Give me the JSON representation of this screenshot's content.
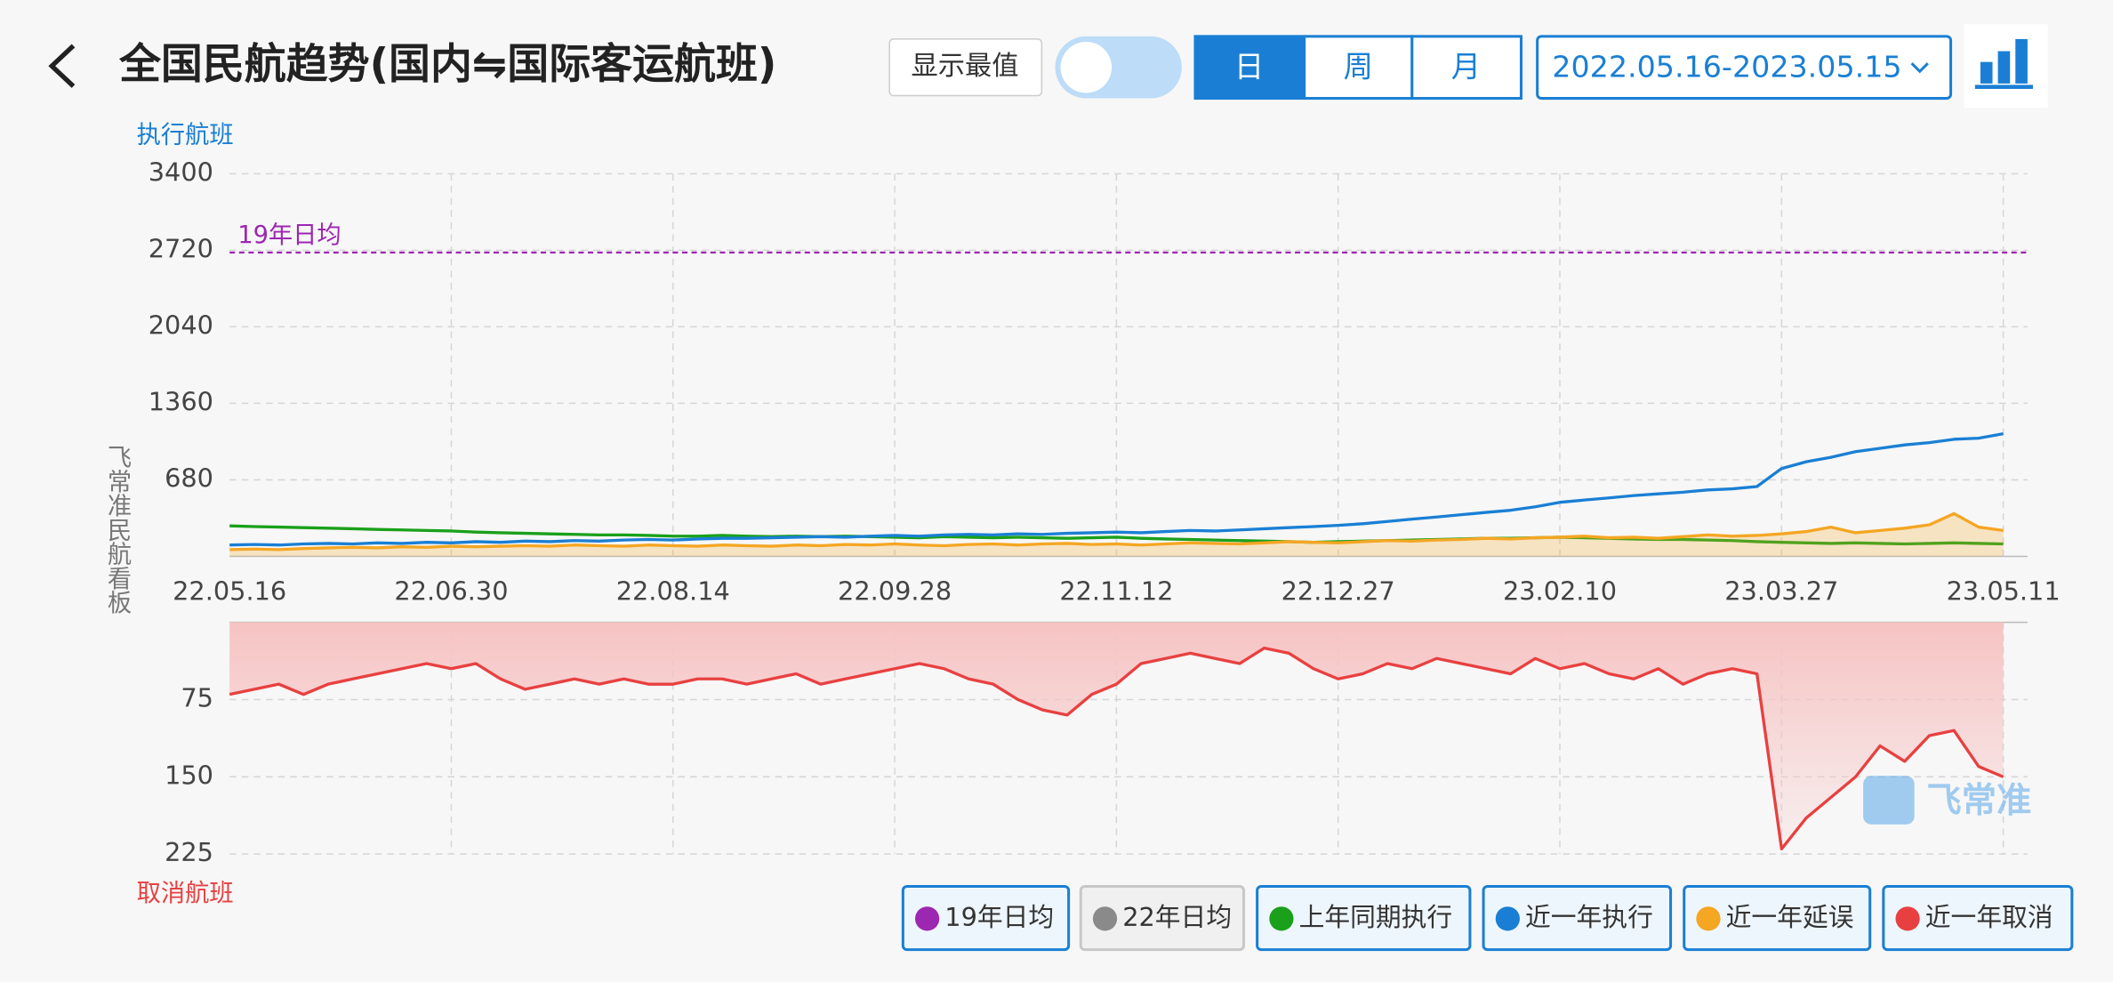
{
  "header": {
    "title": "全国民航趋势(国内⇋国际客运航班)",
    "show_extremes": "显示最值",
    "period_tabs": [
      "日",
      "周",
      "月"
    ],
    "active_tab_index": 0,
    "date_range": "2022.05.16-2023.05.15",
    "watermark": "飞常准"
  },
  "legend_extra": {
    "label": "22年日均",
    "color": "#8a8a8a",
    "active": false
  },
  "chart_data": [
    {
      "type": "line",
      "y_label": "执行航班",
      "side_label": "飞常准民航看板",
      "grid": true,
      "categories": [
        "22.05.16",
        null,
        null,
        null,
        null,
        null,
        null,
        null,
        null,
        "22.06.30",
        null,
        null,
        null,
        null,
        null,
        null,
        null,
        null,
        "22.08.14",
        null,
        null,
        null,
        null,
        null,
        null,
        null,
        null,
        "22.09.28",
        null,
        null,
        null,
        null,
        null,
        null,
        null,
        null,
        "22.11.12",
        null,
        null,
        null,
        null,
        null,
        null,
        null,
        null,
        "22.12.27",
        null,
        null,
        null,
        null,
        null,
        null,
        null,
        null,
        "23.02.10",
        null,
        null,
        null,
        null,
        null,
        null,
        null,
        null,
        "23.03.27",
        null,
        null,
        null,
        null,
        null,
        null,
        null,
        null,
        "23.05.11"
      ],
      "ylim": [
        0,
        3400
      ],
      "yticks": [
        680,
        1360,
        2040,
        2720,
        3400
      ],
      "reference_line": {
        "label": "19年日均",
        "value": 2700,
        "color": "#9c27b0"
      },
      "series": [
        {
          "name": "上年同期执行",
          "color": "#1aa01a",
          "values": [
            270,
            265,
            260,
            255,
            250,
            245,
            240,
            235,
            230,
            225,
            215,
            210,
            205,
            200,
            195,
            190,
            190,
            185,
            180,
            180,
            185,
            180,
            175,
            180,
            175,
            180,
            175,
            170,
            165,
            175,
            170,
            165,
            170,
            165,
            160,
            165,
            170,
            160,
            155,
            150,
            145,
            140,
            135,
            130,
            125,
            130,
            135,
            140,
            145,
            150,
            155,
            160,
            160,
            165,
            170,
            165,
            160,
            155,
            150,
            150,
            145,
            140,
            130,
            125,
            120,
            115,
            120,
            115,
            110,
            115,
            120,
            115,
            110
          ]
        },
        {
          "name": "近一年执行",
          "color": "#1a7fd4",
          "values": [
            100,
            105,
            100,
            110,
            115,
            110,
            120,
            115,
            125,
            120,
            130,
            125,
            135,
            130,
            140,
            135,
            145,
            150,
            145,
            155,
            160,
            160,
            165,
            170,
            175,
            170,
            180,
            185,
            180,
            190,
            195,
            190,
            200,
            195,
            205,
            210,
            215,
            210,
            220,
            230,
            225,
            235,
            245,
            255,
            265,
            275,
            290,
            310,
            330,
            350,
            370,
            390,
            410,
            440,
            480,
            500,
            520,
            540,
            555,
            570,
            590,
            600,
            620,
            780,
            840,
            880,
            930,
            960,
            990,
            1010,
            1040,
            1050,
            1090
          ]
        },
        {
          "name": "近一年延误",
          "color": "#f5a623",
          "area": true,
          "values": [
            60,
            65,
            60,
            70,
            75,
            80,
            75,
            85,
            80,
            90,
            85,
            90,
            95,
            90,
            100,
            95,
            90,
            100,
            95,
            90,
            100,
            95,
            90,
            100,
            95,
            105,
            100,
            110,
            100,
            95,
            105,
            110,
            100,
            110,
            115,
            105,
            110,
            100,
            110,
            120,
            115,
            110,
            120,
            130,
            125,
            120,
            130,
            140,
            135,
            145,
            150,
            160,
            155,
            165,
            170,
            180,
            165,
            170,
            160,
            175,
            190,
            180,
            185,
            200,
            220,
            260,
            210,
            230,
            250,
            280,
            380,
            260,
            230
          ]
        }
      ]
    },
    {
      "type": "line",
      "y_label": "取消航班",
      "grid": true,
      "inverted": true,
      "ylim": [
        0,
        225
      ],
      "yticks": [
        75,
        150,
        225
      ],
      "series": [
        {
          "name": "近一年取消",
          "color": "#e84040",
          "area": true,
          "values": [
            70,
            65,
            60,
            70,
            60,
            55,
            50,
            45,
            40,
            45,
            40,
            55,
            65,
            60,
            55,
            60,
            55,
            60,
            60,
            55,
            55,
            60,
            55,
            50,
            60,
            55,
            50,
            45,
            40,
            45,
            55,
            60,
            75,
            85,
            90,
            70,
            60,
            40,
            35,
            30,
            35,
            40,
            25,
            30,
            45,
            55,
            50,
            40,
            45,
            35,
            40,
            45,
            50,
            35,
            45,
            40,
            50,
            55,
            45,
            60,
            50,
            45,
            50,
            220,
            190,
            170,
            150,
            120,
            135,
            110,
            105,
            140,
            150
          ]
        }
      ]
    }
  ]
}
